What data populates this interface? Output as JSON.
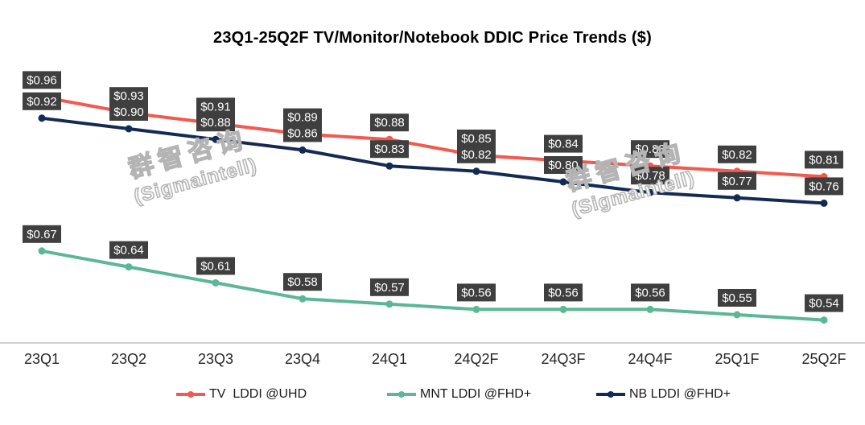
{
  "chart_data": {
    "type": "line",
    "title": "23Q1-25Q2F TV/Monitor/Notebook DDIC Price Trends ($)",
    "categories": [
      "23Q1",
      "23Q2",
      "23Q3",
      "23Q4",
      "24Q1",
      "24Q2F",
      "24Q3F",
      "24Q4F",
      "25Q1F",
      "25Q2F"
    ],
    "series": [
      {
        "id": "tv-lddi-uhd",
        "name": "TV  LDDI @UHD",
        "color": "#F2594F",
        "values": [
          0.96,
          0.93,
          0.91,
          0.89,
          0.88,
          0.85,
          0.84,
          0.83,
          0.82,
          0.81
        ]
      },
      {
        "id": "mnt-lddi-fhd",
        "name": "MNT LDDI @FHD+",
        "color": "#5BB795",
        "values": [
          0.67,
          0.64,
          0.61,
          0.58,
          0.57,
          0.56,
          0.56,
          0.56,
          0.55,
          0.54
        ]
      },
      {
        "id": "nb-lddi-fhd",
        "name": "NB LDDI @FHD+",
        "color": "#152A52",
        "values": [
          0.92,
          0.9,
          0.88,
          0.86,
          0.83,
          0.82,
          0.8,
          0.78,
          0.77,
          0.76
        ]
      }
    ],
    "label_prefix": "$",
    "label_decimals": 2,
    "label_box_color": "#3F3F3F",
    "label_text_color": "#FFFFFF",
    "axis_line_color": "#BFBFBF",
    "tick_text_color": "#262626",
    "ylim": [
      0.5,
      1.0
    ],
    "grid": false,
    "y_axis_visible": false,
    "legend_position": "bottom"
  },
  "watermark": {
    "line1": "群智咨询",
    "line2": "(Sigmaintell)"
  }
}
